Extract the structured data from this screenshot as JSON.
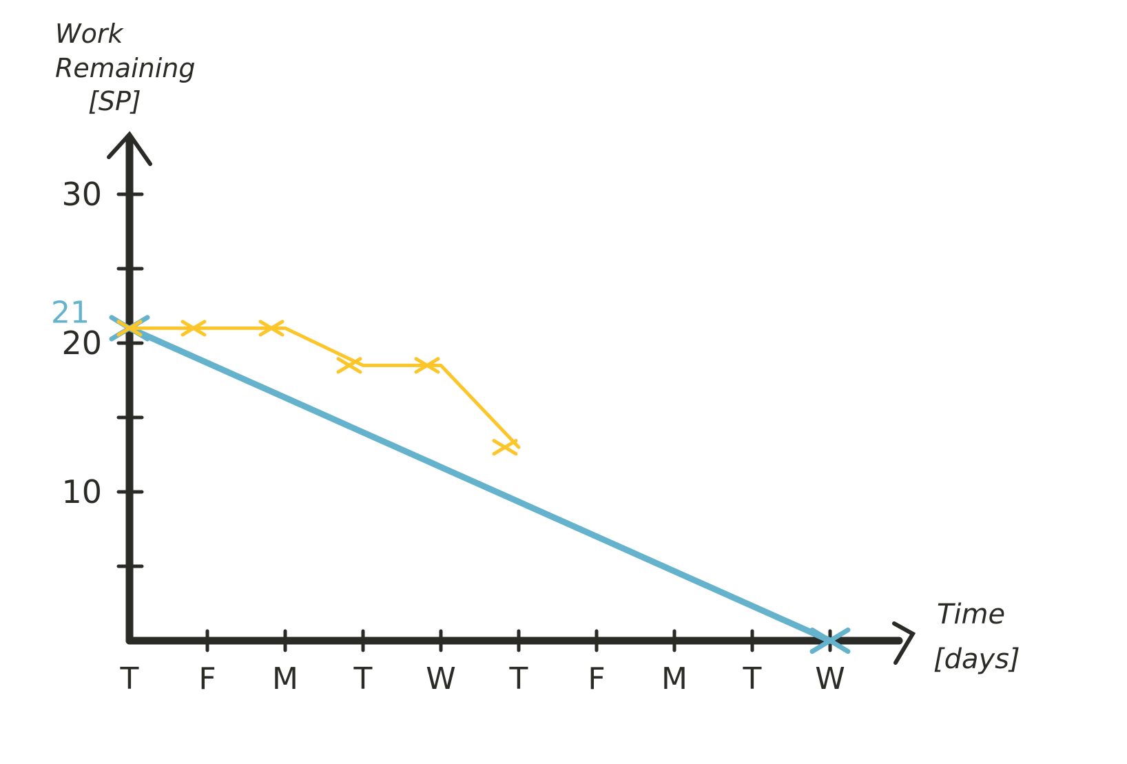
{
  "chart_data": {
    "type": "line",
    "ylabel": "Work Remaining [SP]",
    "xlabel": "Time [days]",
    "categories": [
      "T",
      "F",
      "M",
      "T",
      "W",
      "T",
      "F",
      "M",
      "T",
      "W"
    ],
    "yticks": [
      {
        "value": 5,
        "label": ""
      },
      {
        "value": 10,
        "label": "10"
      },
      {
        "value": 15,
        "label": ""
      },
      {
        "value": 20,
        "label": "20"
      },
      {
        "value": 25,
        "label": ""
      },
      {
        "value": 30,
        "label": "30"
      }
    ],
    "ylim": [
      0,
      34
    ],
    "start_annotation": "21",
    "series": [
      {
        "role": "ideal",
        "color": "#64b2cb",
        "points": [
          [
            0,
            21
          ],
          [
            9,
            0
          ]
        ]
      },
      {
        "role": "actual",
        "color": "#fcc62a",
        "points": [
          [
            0,
            21
          ],
          [
            1,
            21
          ],
          [
            2,
            21
          ],
          [
            3,
            18.5
          ],
          [
            4,
            18.5
          ],
          [
            5,
            13
          ]
        ]
      }
    ],
    "axis_color": "#2a2a26",
    "grid": false,
    "legend": "none"
  }
}
